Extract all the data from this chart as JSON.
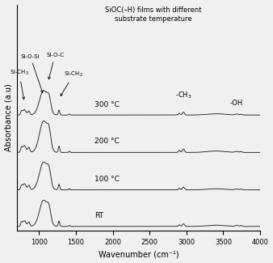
{
  "title": "SiOC(–H) films with different\nsubstrate temperature",
  "xlabel": "Wavenumber (cm⁻¹)",
  "ylabel": "Absorbance (a.u)",
  "xmin": 700,
  "xmax": 4000,
  "spectra_labels": [
    "RT",
    "100 °C",
    "200 °C",
    "300 °C"
  ],
  "offsets": [
    0.0,
    0.42,
    0.85,
    1.28
  ],
  "background_color": "#f0f0f0",
  "line_color": "#222222",
  "peak_scale_rt": 0.3,
  "peak_scale_100": 0.32,
  "peak_scale_200": 0.36,
  "peak_scale_300": 0.28
}
